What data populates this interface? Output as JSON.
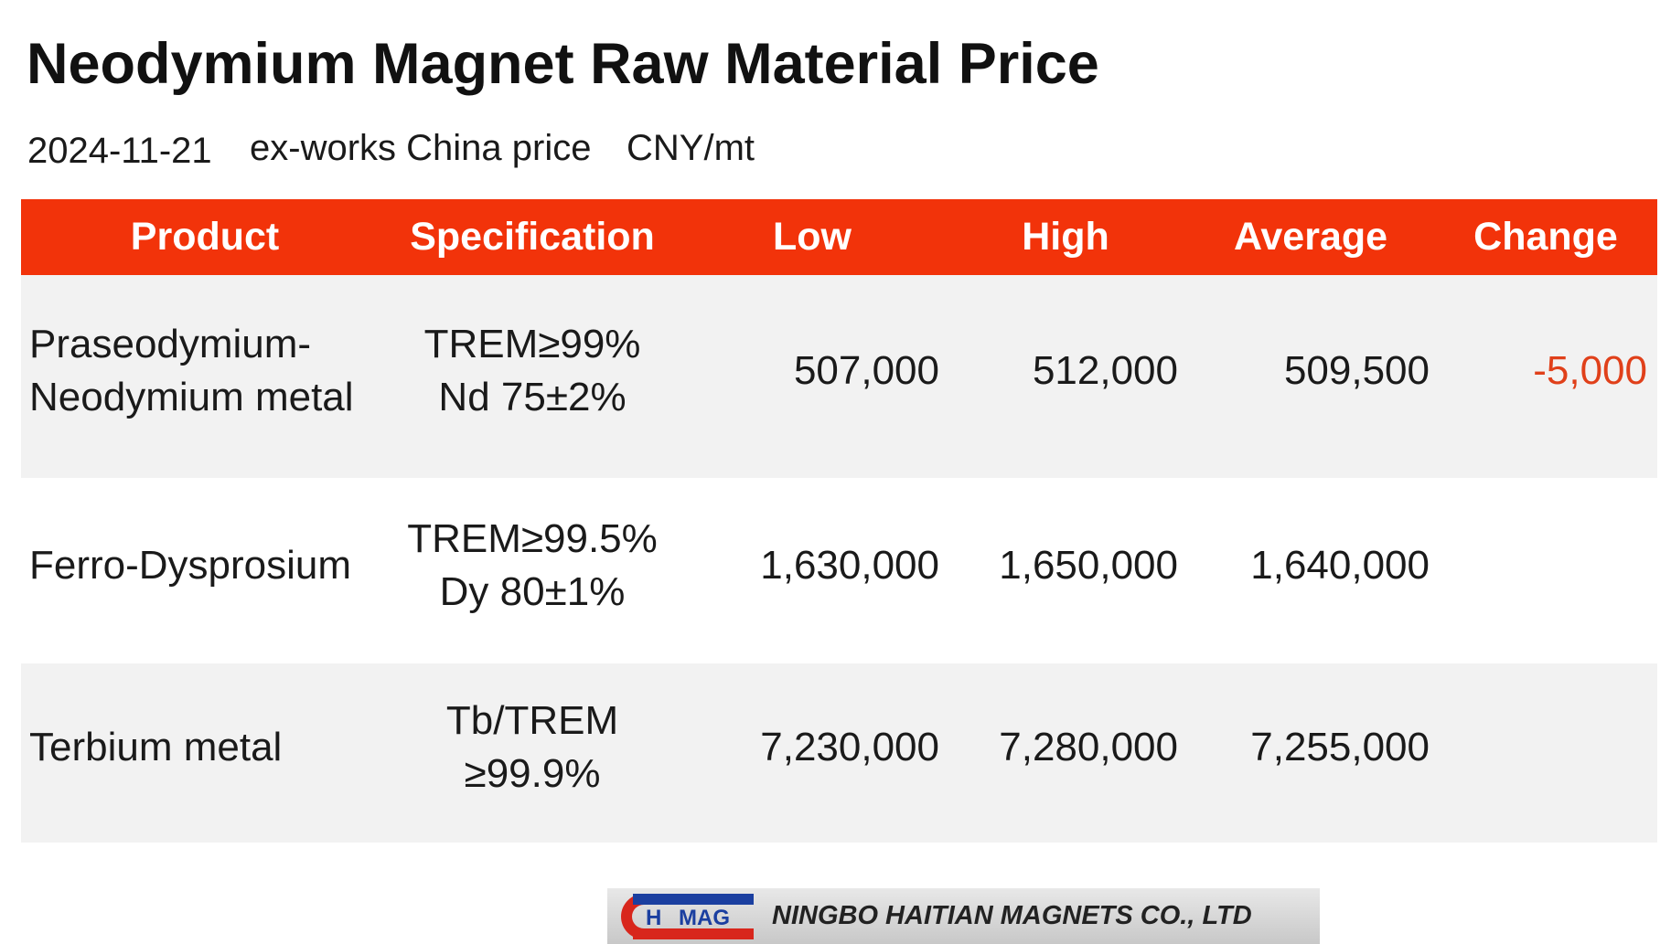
{
  "header": {
    "title": "Neodymium Magnet Raw Material Price",
    "date": "2024-11-21",
    "basis": "ex-works China price",
    "unit": "CNY/mt"
  },
  "table": {
    "columns": [
      "Product",
      "Specification",
      "Low",
      "High",
      "Average",
      "Change"
    ],
    "rows": [
      {
        "product": [
          "Praseodymium-",
          "Neodymium metal"
        ],
        "specification": [
          "TREM≥99%",
          "Nd 75±2%"
        ],
        "low": "507,000",
        "high": "512,000",
        "average": "509,500",
        "change": "-5,000"
      },
      {
        "product": [
          "Ferro-Dysprosium"
        ],
        "specification": [
          "TREM≥99.5%",
          "Dy 80±1%"
        ],
        "low": "1,630,000",
        "high": "1,650,000",
        "average": "1,640,000"
      },
      {
        "product": [
          "Terbium metal"
        ],
        "specification": [
          "Tb/TREM",
          "≥99.9%"
        ],
        "low": "7,230,000",
        "high": "7,280,000",
        "average": "7,255,000"
      }
    ]
  },
  "logo": {
    "mark_left": "H",
    "mark_right": "MAG",
    "company": "NINGBO HAITIAN MAGNETS CO., LTD"
  }
}
